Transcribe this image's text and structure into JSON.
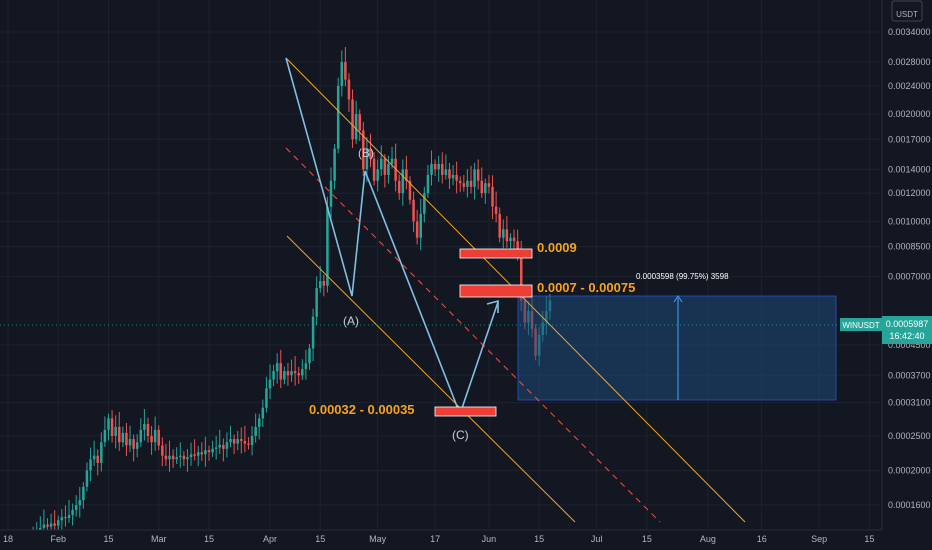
{
  "currency_badge": {
    "line1": "",
    "line2": "USDT"
  },
  "price_tag": {
    "symbol": "WINUSDT",
    "price": "0.0005987",
    "countdown": "16:42:40"
  },
  "chart_data": {
    "type": "candlestick",
    "y_scale": "log",
    "ylim": [
      0.000138,
      0.0043
    ],
    "y_ticks": [
      "0.0034000",
      "0.0028000",
      "0.0024000",
      "0.0020000",
      "0.0017000",
      "0.0014000",
      "0.0012000",
      "0.0010000",
      "0.0008500",
      "0.0007000",
      "0.0004500",
      "0.0003700",
      "0.0003100",
      "0.0002500",
      "0.0002000",
      "0.0001600"
    ],
    "x_ticks": [
      {
        "label": "18",
        "date": "2021-01-18"
      },
      {
        "label": "Feb",
        "date": "2021-02-01"
      },
      {
        "label": "15",
        "date": "2021-02-15"
      },
      {
        "label": "Mar",
        "date": "2021-03-01"
      },
      {
        "label": "15",
        "date": "2021-03-15"
      },
      {
        "label": "Apr",
        "date": "2021-04-01"
      },
      {
        "label": "15",
        "date": "2021-04-15"
      },
      {
        "label": "May",
        "date": "2021-05-01"
      },
      {
        "label": "17",
        "date": "2021-05-17"
      },
      {
        "label": "Jun",
        "date": "2021-06-01"
      },
      {
        "label": "15",
        "date": "2021-06-15"
      },
      {
        "label": "Jul",
        "date": "2021-07-01"
      },
      {
        "label": "15",
        "date": "2021-07-15"
      },
      {
        "label": "Aug",
        "date": "2021-08-01"
      },
      {
        "label": "16",
        "date": "2021-08-16"
      },
      {
        "label": "Sep",
        "date": "2021-09-01"
      },
      {
        "label": "15",
        "date": "2021-09-15"
      }
    ],
    "close_prices": [
      0.000135,
      0.000136,
      0.000138,
      0.000141,
      0.000139,
      0.000142,
      0.00014,
      0.000145,
      0.000148,
      0.000147,
      0.00015,
      0.000155,
      0.00016,
      0.000165,
      0.00018,
      0.0002,
      0.000215,
      0.00022,
      0.00021,
      0.00024,
      0.00026,
      0.00028,
      0.00025,
      0.000265,
      0.00024,
      0.000255,
      0.000235,
      0.000245,
      0.00023,
      0.00024,
      0.00026,
      0.00027,
      0.00025,
      0.00024,
      0.00026,
      0.000235,
      0.00022,
      0.000215,
      0.00022,
      0.000215,
      0.000218,
      0.00022,
      0.000215,
      0.000218,
      0.000222,
      0.00022,
      0.000225,
      0.000222,
      0.000228,
      0.000225,
      0.00023,
      0.000232,
      0.000236,
      0.00023,
      0.00024,
      0.000245,
      0.000238,
      0.000245,
      0.000242,
      0.000238,
      0.000236,
      0.00025,
      0.000265,
      0.00028,
      0.0003,
      0.00034,
      0.00036,
      0.00038,
      0.0004,
      0.00036,
      0.00038,
      0.00037,
      0.00038,
      0.000375,
      0.00037,
      0.000385,
      0.0004,
      0.00044,
      0.00054,
      0.00065,
      0.00068,
      0.00066,
      0.0011,
      0.0013,
      0.0016,
      0.0024,
      0.0028,
      0.0025,
      0.0022,
      0.0017,
      0.002,
      0.0018,
      0.0014,
      0.0016,
      0.0015,
      0.0013,
      0.0014,
      0.0015,
      0.00135,
      0.00145,
      0.0015,
      0.0013,
      0.0012,
      0.0014,
      0.0013,
      0.00115,
      0.001,
      0.0009,
      0.00105,
      0.0012,
      0.00135,
      0.00145,
      0.0014,
      0.00145,
      0.00135,
      0.0014,
      0.00132,
      0.00135,
      0.0013,
      0.00128,
      0.00125,
      0.0013,
      0.00125,
      0.0014,
      0.0013,
      0.0012,
      0.00128,
      0.00125,
      0.0011,
      0.00105,
      0.0009,
      0.00095,
      0.00088,
      0.0009,
      0.00088,
      0.0008,
      0.0006,
      0.00052,
      0.00056,
      0.0005,
      0.00042,
      0.00048,
      0.00052,
      0.00056,
      0.0006
    ],
    "annotations": {
      "wave_labels": [
        "(A)",
        "(B)",
        "(C)"
      ],
      "zones": [
        {
          "label": "0.0009",
          "price": 0.00092,
          "color": "#f7a21b"
        },
        {
          "label": "0.0007 - 0.00075",
          "price": 0.00073,
          "color": "#f7a21b"
        },
        {
          "label": "0.00032 - 0.00035",
          "price": 0.00033,
          "color": "#f7a21b"
        }
      ],
      "measure": {
        "label": "0.0003598 (99.75%) 3598",
        "from_price": 0.000365,
        "to_price": 0.00071
      }
    }
  }
}
